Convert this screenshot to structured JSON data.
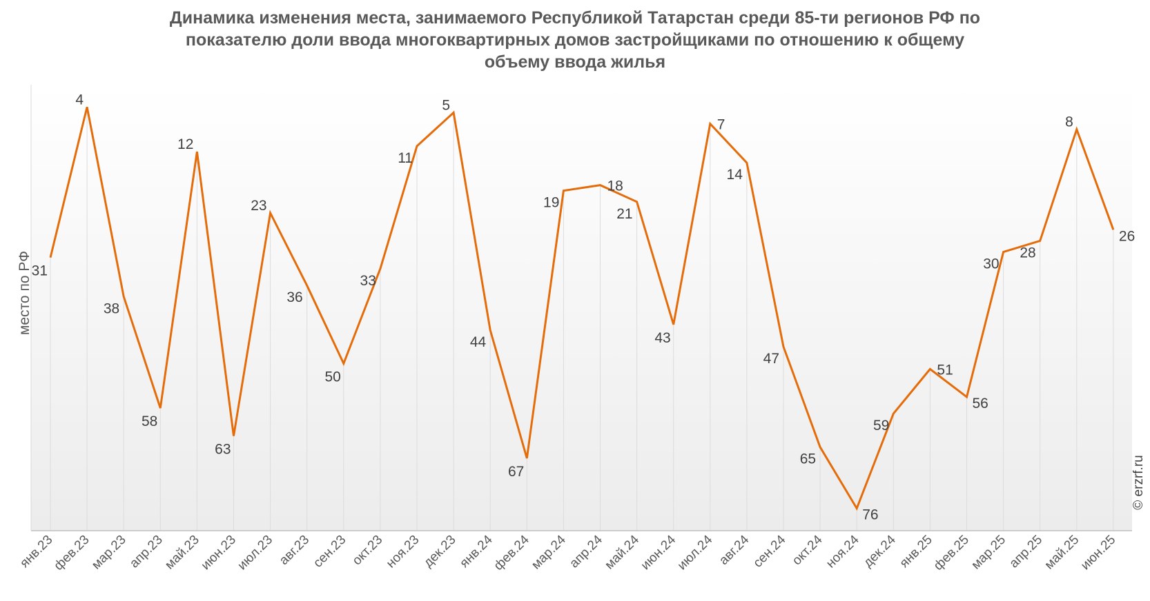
{
  "chart_data": {
    "type": "line",
    "title_lines": [
      "Динамика изменения места, занимаемого Республикой Татарстан среди 85-ти регионов РФ по",
      "показателю доли ввода многоквартирных домов застройщиками по отношению к общему",
      "объему ввода жилья"
    ],
    "ylabel": "место по РФ",
    "xlabel": "",
    "y_inverted": true,
    "ylim": [
      0,
      80
    ],
    "grid": "vertical",
    "legend": "none",
    "categories": [
      "янв.23",
      "фев.23",
      "мар.23",
      "апр.23",
      "май.23",
      "июн.23",
      "июл.23",
      "авг.23",
      "сен.23",
      "окт.23",
      "ноя.23",
      "дек.23",
      "янв.24",
      "фев.24",
      "мар.24",
      "апр.24",
      "май.24",
      "июн.24",
      "июл.24",
      "авг.24",
      "сен.24",
      "окт.24",
      "ноя.24",
      "дек.24",
      "янв.25",
      "фев.25",
      "мар.25",
      "апр.25",
      "май.25",
      "июн.25"
    ],
    "values": [
      31,
      4,
      38,
      58,
      12,
      63,
      23,
      36,
      50,
      33,
      11,
      5,
      44,
      67,
      19,
      18,
      21,
      43,
      7,
      14,
      47,
      65,
      76,
      59,
      51,
      56,
      30,
      28,
      8,
      26
    ],
    "line_color": "#E46C0A",
    "watermark": "© erzrf.ru"
  }
}
